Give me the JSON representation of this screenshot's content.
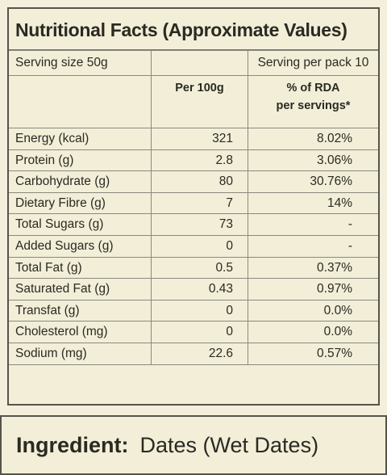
{
  "title": "Nutritional Facts (Approximate Values)",
  "serving_size": "Serving size 50g",
  "serving_per_pack": "Serving per pack 10",
  "col_per100": "Per 100g",
  "col_rda_1": "% of RDA",
  "col_rda_2": "per servings*",
  "rows": [
    {
      "name": "Energy (kcal)",
      "per100": "321",
      "rda": "8.02%"
    },
    {
      "name": "Protein (g)",
      "per100": "2.8",
      "rda": "3.06%"
    },
    {
      "name": "Carbohydrate (g)",
      "per100": "80",
      "rda": "30.76%"
    },
    {
      "name": "Dietary Fibre (g)",
      "per100": "7",
      "rda": "14%"
    },
    {
      "name": "Total Sugars (g)",
      "per100": "73",
      "rda": "-"
    },
    {
      "name": "Added Sugars (g)",
      "per100": "0",
      "rda": "-"
    },
    {
      "name": "Total Fat (g)",
      "per100": "0.5",
      "rda": "0.37%"
    },
    {
      "name": "Saturated Fat (g)",
      "per100": "0.43",
      "rda": "0.97%"
    },
    {
      "name": "Transfat (g)",
      "per100": "0",
      "rda": "0.0%"
    },
    {
      "name": "Cholesterol (mg)",
      "per100": "0",
      "rda": "0.0%"
    },
    {
      "name": "Sodium (mg)",
      "per100": "22.6",
      "rda": "0.57%"
    }
  ],
  "ingredient_label": "Ingredient:",
  "ingredient_value": "Dates (Wet Dates)"
}
